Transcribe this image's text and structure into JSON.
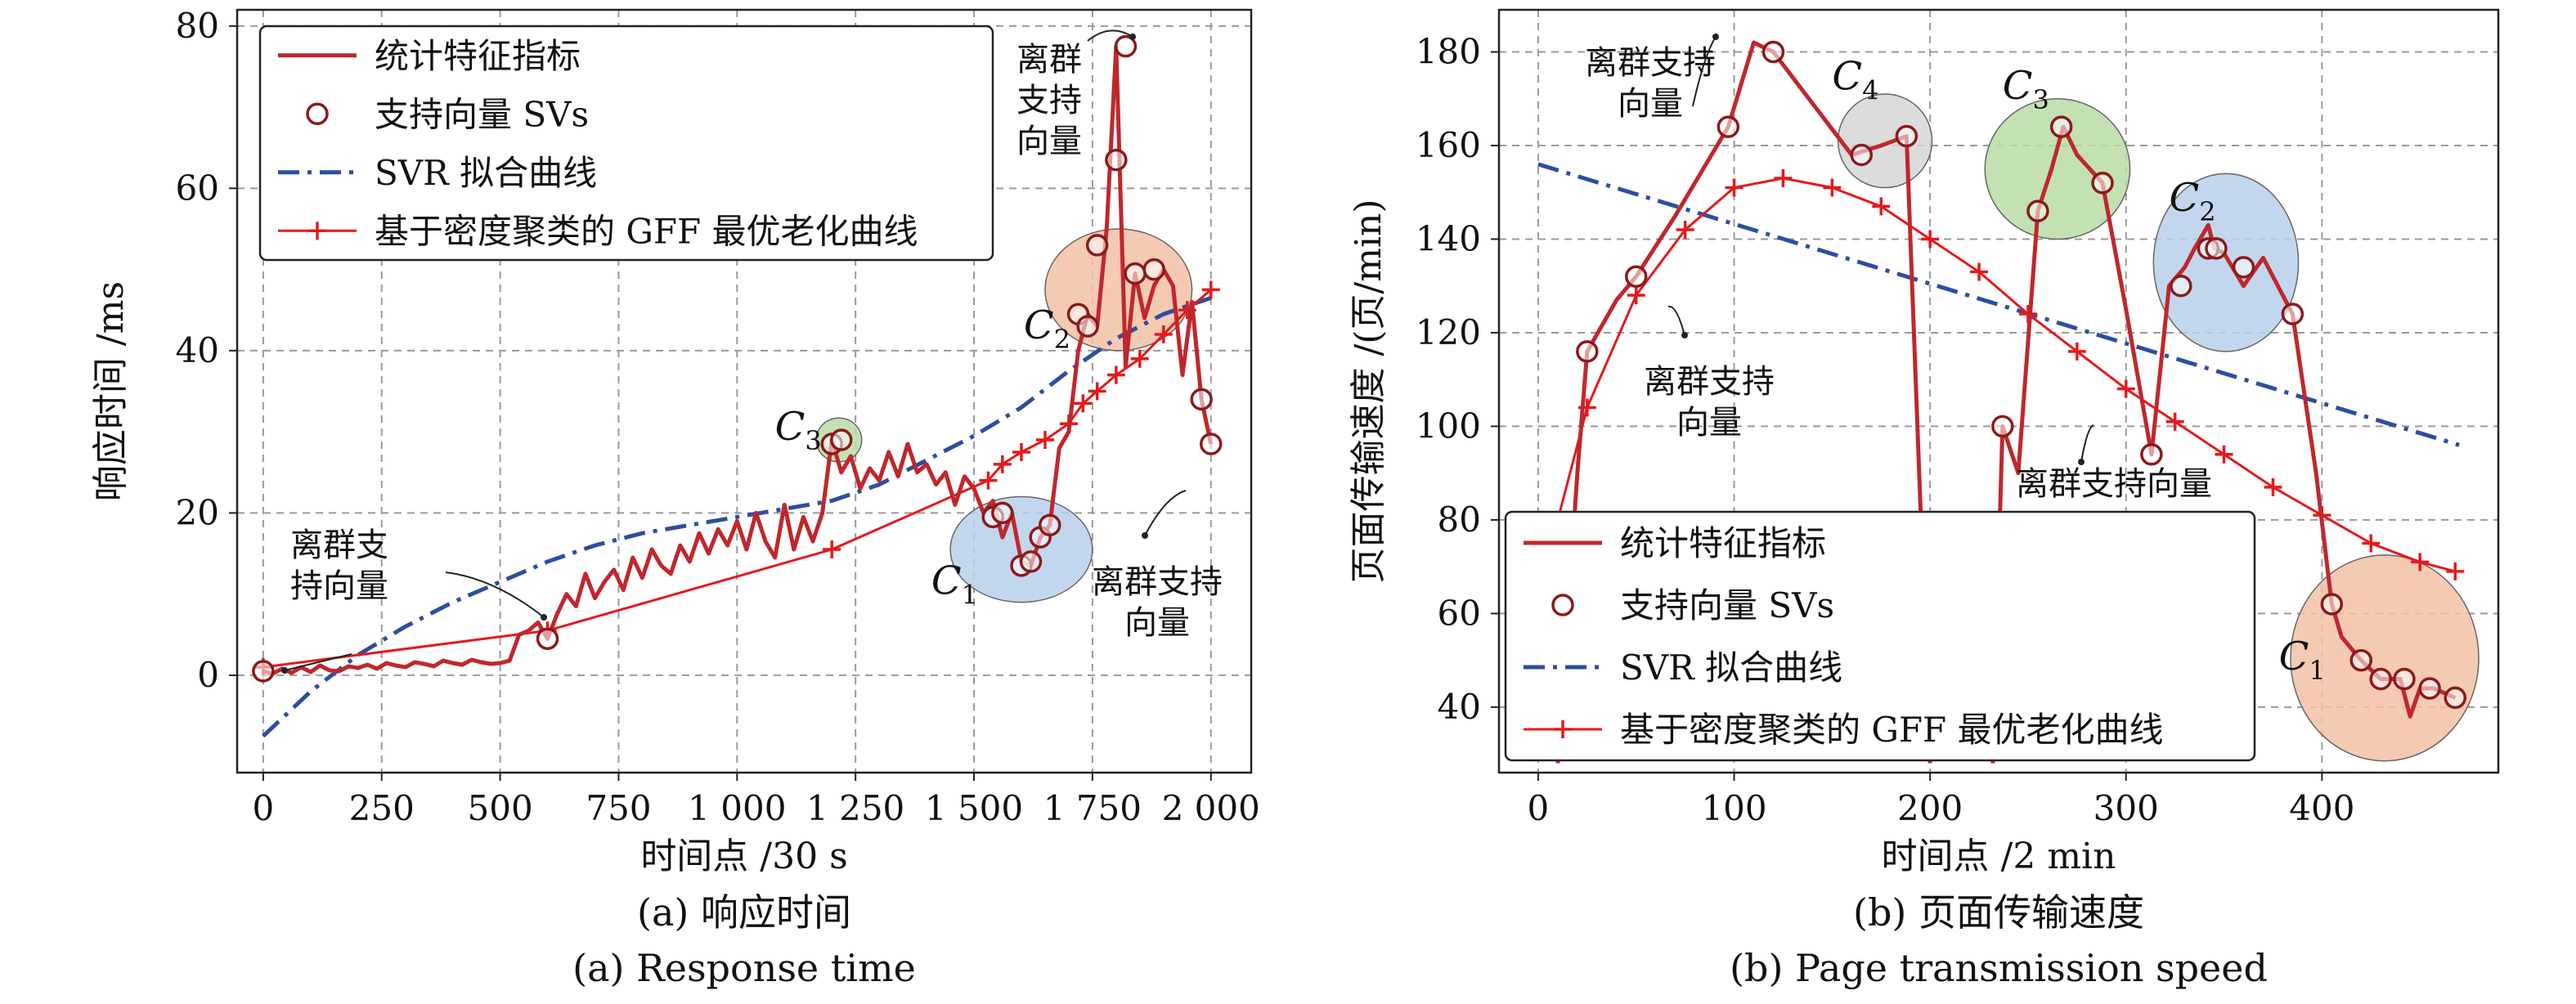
{
  "chart_data": [
    {
      "type": "line",
      "xlabel": "时间点 /30 s",
      "ylabel": "响应时间 /ms",
      "caption_cn": "(a) 响应时间",
      "caption_en": "(a) Response time",
      "xlim": [
        -55,
        2085
      ],
      "ylim": [
        -12,
        82
      ],
      "xticks": [
        0,
        250,
        500,
        750,
        1000,
        1250,
        1500,
        1750,
        2000
      ],
      "xtick_labels": [
        "0",
        "250",
        "500",
        "750",
        "1 000",
        "1 250",
        "1 500",
        "1 750",
        "2 000"
      ],
      "yticks": [
        0,
        20,
        40,
        60,
        80
      ],
      "grid": true,
      "legend": "top-left",
      "legend_entries": [
        "统计特征指标",
        "支持向量 SVs",
        "SVR 拟合曲线",
        "基于密度聚类的 GFF 最优老化曲线"
      ],
      "series": [
        {
          "name": "统计特征指标",
          "color": "#c0272d",
          "x": [
            0,
            20,
            40,
            60,
            80,
            100,
            120,
            140,
            160,
            180,
            200,
            220,
            240,
            260,
            280,
            300,
            320,
            340,
            360,
            380,
            400,
            420,
            440,
            460,
            480,
            500,
            520,
            540,
            560,
            580,
            600,
            620,
            640,
            660,
            680,
            700,
            720,
            740,
            760,
            780,
            800,
            820,
            840,
            860,
            880,
            900,
            920,
            940,
            960,
            980,
            1000,
            1020,
            1040,
            1060,
            1080,
            1100,
            1120,
            1140,
            1160,
            1180,
            1200,
            1220,
            1240,
            1260,
            1280,
            1300,
            1320,
            1340,
            1360,
            1380,
            1400,
            1420,
            1440,
            1460,
            1480,
            1500,
            1520,
            1540,
            1560,
            1580,
            1600,
            1620,
            1640,
            1660,
            1680,
            1700,
            1720,
            1740,
            1760,
            1780,
            1800,
            1820,
            1840,
            1860,
            1880,
            1900,
            1920,
            1940,
            1960,
            1980,
            2000
          ],
          "values": [
            0.5,
            0.2,
            0.8,
            0.3,
            1.0,
            0.4,
            1.2,
            0.6,
            0.5,
            1.1,
            0.9,
            1.3,
            0.8,
            1.5,
            1.2,
            1.0,
            1.6,
            1.4,
            1.1,
            1.8,
            1.5,
            1.3,
            1.9,
            1.6,
            1.4,
            1.5,
            1.8,
            5.0,
            5.5,
            6.5,
            4.5,
            7.5,
            10.0,
            8.5,
            12.5,
            9.5,
            11.5,
            13.0,
            10.5,
            14.5,
            12.0,
            15.5,
            13.5,
            12.5,
            16.0,
            14.0,
            17.5,
            15.0,
            18.0,
            16.0,
            19.0,
            15.5,
            20.0,
            16.5,
            14.5,
            21.0,
            15.5,
            19.5,
            16.5,
            20.0,
            29.0,
            25.0,
            27.0,
            23.0,
            25.5,
            24.0,
            27.5,
            24.5,
            28.5,
            25.0,
            26.0,
            23.5,
            25.0,
            21.0,
            24.5,
            23.0,
            20.0,
            21.5,
            17.0,
            20.0,
            14.0,
            13.5,
            17.0,
            18.5,
            28.0,
            30.0,
            40.0,
            44.5,
            43.0,
            55.0,
            77.5,
            38.0,
            49.5,
            44.0,
            48.0,
            50.0,
            48.0,
            37.0,
            46.0,
            34.0,
            28.5
          ]
        },
        {
          "name": "支持向量 SVs",
          "color": "#8b1a1a",
          "marker": "circle",
          "x": [
            0,
            600,
            1200,
            1220,
            1540,
            1560,
            1600,
            1620,
            1640,
            1660,
            1720,
            1740,
            1760,
            1800,
            1820,
            1840,
            1880,
            1980,
            2000
          ],
          "values": [
            0.5,
            4.5,
            28.5,
            29.0,
            19.5,
            20.0,
            13.5,
            14.0,
            17.0,
            18.5,
            44.5,
            43.0,
            53.0,
            63.5,
            77.5,
            49.5,
            50.0,
            34.0,
            28.5
          ]
        },
        {
          "name": "SVR 拟合曲线",
          "color": "#2c4ea0",
          "style": "dash-dot",
          "x": [
            0,
            100,
            200,
            300,
            400,
            500,
            600,
            700,
            800,
            900,
            1000,
            1100,
            1200,
            1300,
            1400,
            1500,
            1600,
            1700,
            1800,
            1900,
            2000
          ],
          "values": [
            -7.5,
            -2.0,
            2.5,
            6.0,
            9.0,
            11.5,
            14.0,
            16.0,
            17.5,
            18.5,
            19.5,
            20.5,
            21.5,
            23.5,
            26.5,
            29.5,
            33.0,
            37.5,
            41.5,
            44.5,
            46.5
          ]
        },
        {
          "name": "基于密度聚类的 GFF 最优老化曲线",
          "color": "#e41a1c",
          "marker": "plus",
          "x": [
            0,
            600,
            1200,
            1530,
            1560,
            1600,
            1650,
            1700,
            1730,
            1760,
            1800,
            1850,
            1900,
            1950,
            2000
          ],
          "values": [
            1.0,
            5.5,
            15.5,
            24.0,
            26.0,
            27.5,
            29.0,
            31.0,
            33.5,
            35.0,
            37.0,
            39.0,
            42.0,
            45.0,
            47.5
          ]
        }
      ],
      "clusters": [
        {
          "label": "C",
          "sub": "1",
          "color": "#b7d0ea",
          "cx": 1600,
          "cy": 15.5,
          "rx": 150,
          "ry": 6.5
        },
        {
          "label": "C",
          "sub": "2",
          "color": "#f3c1a6",
          "cx": 1805,
          "cy": 47.5,
          "rx": 155,
          "ry": 7.5
        },
        {
          "label": "C",
          "sub": "3",
          "color": "#b9dca6",
          "cx": 1215,
          "cy": 29.0,
          "rx": 48,
          "ry": 2.7
        }
      ],
      "annotations": [
        {
          "text": "离群支持向量",
          "lines": [
            "离群支",
            "持向量"
          ]
        },
        {
          "text": "离群支持向量",
          "lines": [
            "离群",
            "支持",
            "向量"
          ]
        },
        {
          "text": "离群支持向量",
          "lines": [
            "离群支持",
            "向量"
          ]
        }
      ]
    },
    {
      "type": "line",
      "xlabel": "时间点 /2 min",
      "ylabel": "页面传输速度 /(页/min)",
      "caption_cn": "(b) 页面传输速度",
      "caption_en": "(b) Page transmission speed",
      "xlim": [
        -20,
        490
      ],
      "ylim": [
        26,
        189
      ],
      "xticks": [
        0,
        100,
        200,
        300,
        400
      ],
      "xtick_labels": [
        "0",
        "100",
        "200",
        "300",
        "400"
      ],
      "yticks": [
        40,
        60,
        80,
        100,
        120,
        140,
        160,
        180
      ],
      "grid": true,
      "legend": "bottom-left",
      "legend_entries": [
        "统计特征指标",
        "支持向量 SVs",
        "SVR 拟合曲线",
        "基于密度聚类的 GFF 最优老化曲线"
      ],
      "series": [
        {
          "name": "统计特征指标",
          "color": "#c0272d",
          "segments": [
            {
              "x": [
                10,
                20,
                25,
                40,
                50,
                70,
                97,
                110,
                120,
                160,
                175,
                188,
                200
              ],
              "values": [
                28,
                90,
                116,
                127,
                132,
                145,
                164,
                182,
                180,
                158,
                160,
                162,
                28
              ]
            },
            {
              "x": [
                232,
                237,
                245,
                255,
                262,
                268,
                275,
                288,
                300,
                313,
                322,
                330,
                335,
                342,
                345,
                350,
                360,
                370,
                385,
                397,
                405,
                410,
                420,
                430,
                440,
                445,
                450,
                457,
                468
              ],
              "values": [
                28,
                100,
                90,
                146,
                155,
                164,
                158,
                152,
                125,
                94,
                130,
                134,
                138,
                143,
                138,
                137,
                130,
                136,
                124,
                90,
                62,
                55,
                50,
                46,
                46,
                38,
                44,
                44,
                42
              ]
            }
          ]
        },
        {
          "name": "支持向量 SVs",
          "color": "#8b1a1a",
          "marker": "circle",
          "x": [
            25,
            50,
            97,
            120,
            165,
            188,
            237,
            255,
            267,
            288,
            313,
            328,
            342,
            346,
            360,
            385,
            405,
            420,
            430,
            442,
            455,
            468
          ],
          "values": [
            116,
            132,
            164,
            180,
            158,
            162,
            100,
            146,
            164,
            152,
            94,
            130,
            138,
            138,
            134,
            124,
            62,
            50,
            46,
            46,
            44,
            42
          ]
        },
        {
          "name": "SVR 拟合曲线",
          "color": "#2c4ea0",
          "style": "dash-dot",
          "x": [
            0,
            470
          ],
          "values": [
            156,
            96
          ]
        },
        {
          "name": "基于密度聚类的 GFF 最优老化曲线",
          "color": "#e41a1c",
          "marker": "plus",
          "x": [
            10,
            25,
            50,
            75,
            100,
            125,
            150,
            175,
            200,
            225,
            250,
            275,
            300,
            325,
            350,
            375,
            400,
            425,
            450,
            468
          ],
          "values": [
            80,
            104,
            128,
            142,
            151,
            153,
            151,
            147,
            140,
            133,
            124,
            116,
            108,
            101,
            94,
            87,
            81,
            75,
            71,
            69
          ]
        }
      ],
      "clusters": [
        {
          "label": "C",
          "sub": "1",
          "color": "#f3c1a6",
          "cx": 432,
          "cy": 50.5,
          "rx": 48,
          "ry": 22
        },
        {
          "label": "C",
          "sub": "2",
          "color": "#b7d0ea",
          "cx": 351,
          "cy": 135,
          "rx": 37,
          "ry": 19
        },
        {
          "label": "C",
          "sub": "3",
          "color": "#b9dca6",
          "cx": 265,
          "cy": 155,
          "rx": 37,
          "ry": 15
        },
        {
          "label": "C",
          "sub": "4",
          "color": "#d6d6d6",
          "cx": 177,
          "cy": 161,
          "rx": 24,
          "ry": 10
        }
      ],
      "annotations": [
        {
          "text": "离群支持向量",
          "lines": [
            "离群支持",
            "向量"
          ]
        },
        {
          "text": "离群支持向量",
          "lines": [
            "离群支持",
            "向量"
          ]
        },
        {
          "text": "离群支持向量",
          "lines": [
            "离群支持向量"
          ]
        }
      ]
    }
  ]
}
